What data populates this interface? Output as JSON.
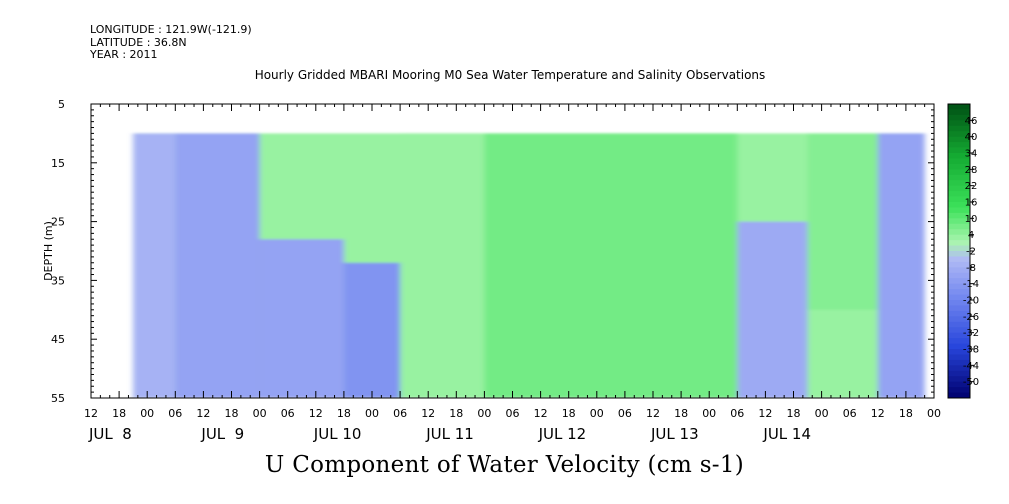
{
  "header": {
    "longitude": "LONGITUDE : 121.9W(-121.9)",
    "latitude": "LATITUDE : 36.8N",
    "year": "YEAR : 2011"
  },
  "chart_data": {
    "type": "heatmap",
    "title": "Hourly Gridded MBARI Mooring M0 Sea Water Temperature and Salinity Observations",
    "colorbar_title": "U Component of Water Velocity (cm s-1)",
    "ylabel": "DEPTH (m)",
    "y_axis": {
      "min": 5,
      "max": 55,
      "inverted": true,
      "ticks": [
        5,
        15,
        25,
        35,
        45,
        55
      ]
    },
    "x_axis": {
      "hour_ticks": [
        "12",
        "18",
        "00",
        "06",
        "12",
        "18",
        "00",
        "06",
        "12",
        "18",
        "00",
        "06",
        "12",
        "18",
        "00",
        "06",
        "12",
        "18",
        "00",
        "06",
        "12",
        "18",
        "00",
        "06",
        "12",
        "18",
        "00",
        "06",
        "12",
        "18",
        "00"
      ],
      "day_labels": [
        "JUL  8",
        "JUL  9",
        "JUL 10",
        "JUL 11",
        "JUL 12",
        "JUL 13",
        "JUL 14"
      ],
      "range_hours_from_jul8_00": [
        12,
        192
      ]
    },
    "data_extent": {
      "start_hours_from_jul8_00": 21,
      "end_hours_from_jul8_00": 190,
      "min_depth": 10,
      "max_depth": 55
    },
    "colorbar": {
      "labels": [
        "46",
        "40",
        "34",
        "28",
        "22",
        "16",
        "10",
        "4",
        "-2",
        "-8",
        "-14",
        "-20",
        "-26",
        "-32",
        "-38",
        "-44",
        "-50"
      ],
      "min": -50,
      "max": 52
    },
    "field_summary": [
      {
        "hour_from": 21,
        "hour_to": 30,
        "depth_from": 10,
        "depth_to": 55,
        "approx_value": -4
      },
      {
        "hour_from": 30,
        "hour_to": 48,
        "depth_from": 10,
        "depth_to": 55,
        "approx_value": -8
      },
      {
        "hour_from": 48,
        "hour_to": 66,
        "depth_from": 28,
        "depth_to": 55,
        "approx_value": -8
      },
      {
        "hour_from": 66,
        "hour_to": 78,
        "depth_from": 32,
        "depth_to": 55,
        "approx_value": -12
      },
      {
        "hour_from": 78,
        "hour_to": 96,
        "depth_from": 10,
        "depth_to": 55,
        "approx_value": 6
      },
      {
        "hour_from": 96,
        "hour_to": 150,
        "depth_from": 10,
        "depth_to": 55,
        "approx_value": 10
      },
      {
        "hour_from": 150,
        "hour_to": 165,
        "depth_from": 25,
        "depth_to": 55,
        "approx_value": -6
      },
      {
        "hour_from": 165,
        "hour_to": 180,
        "depth_from": 10,
        "depth_to": 40,
        "approx_value": 8
      },
      {
        "hour_from": 180,
        "hour_to": 190,
        "depth_from": 10,
        "depth_to": 55,
        "approx_value": -8
      }
    ]
  }
}
